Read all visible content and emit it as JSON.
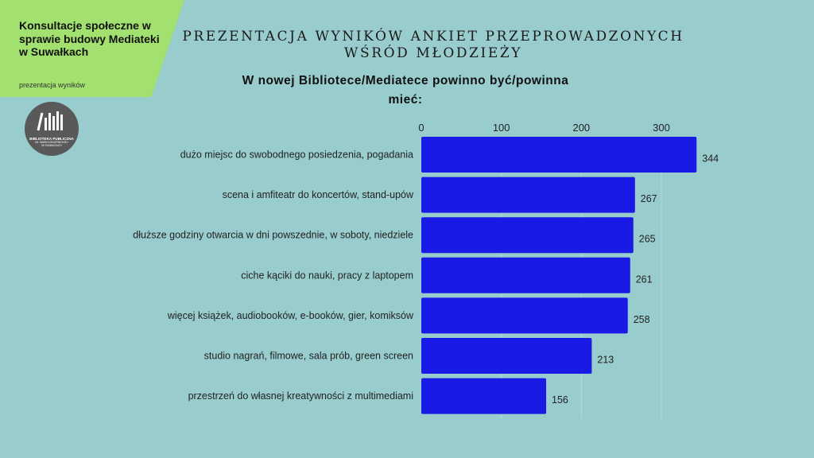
{
  "header": {
    "corner_title": "Konsultacje społeczne w sprawie budowy Mediateki w Suwałkach",
    "corner_subtitle": "prezentacja wyników",
    "heading": "PREZENTACJA WYNIKÓW ANKIET PRZEPROWADZONYCH WŚRÓD MŁODZIEŻY"
  },
  "logo": {
    "name": "BIBLIOTEKA PUBLICZNA",
    "line1": "IM. MARII KONOPNICKIEJ",
    "line2": "W SUWAŁKACH"
  },
  "colors": {
    "background": "#98cccd",
    "corner": "#a2e06f",
    "bar": "#1a1ae6"
  },
  "chart_data": {
    "type": "bar",
    "orientation": "horizontal",
    "title": "W nowej Bibliotece/Mediatece powinno być/powinna mieć:",
    "categories": [
      "dużo miejsc do swobodnego posiedzenia, pogadania",
      "scena i amfiteatr do koncertów, stand-upów",
      "dłuższe godziny otwarcia w dni powszednie, w soboty, niedziele",
      "ciche kąciki do nauki, pracy z laptopem",
      "więcej książek, audiobooków, e-booków, gier, komiksów",
      "studio nagrań, filmowe, sala prób, green screen",
      "przestrzeń do własnej kreatywności z multimediami"
    ],
    "values": [
      344,
      267,
      265,
      261,
      258,
      213,
      156
    ],
    "xticks": [
      0,
      100,
      200,
      300
    ],
    "xlim": [
      0,
      350
    ],
    "axis_position": "top",
    "grid": true
  }
}
